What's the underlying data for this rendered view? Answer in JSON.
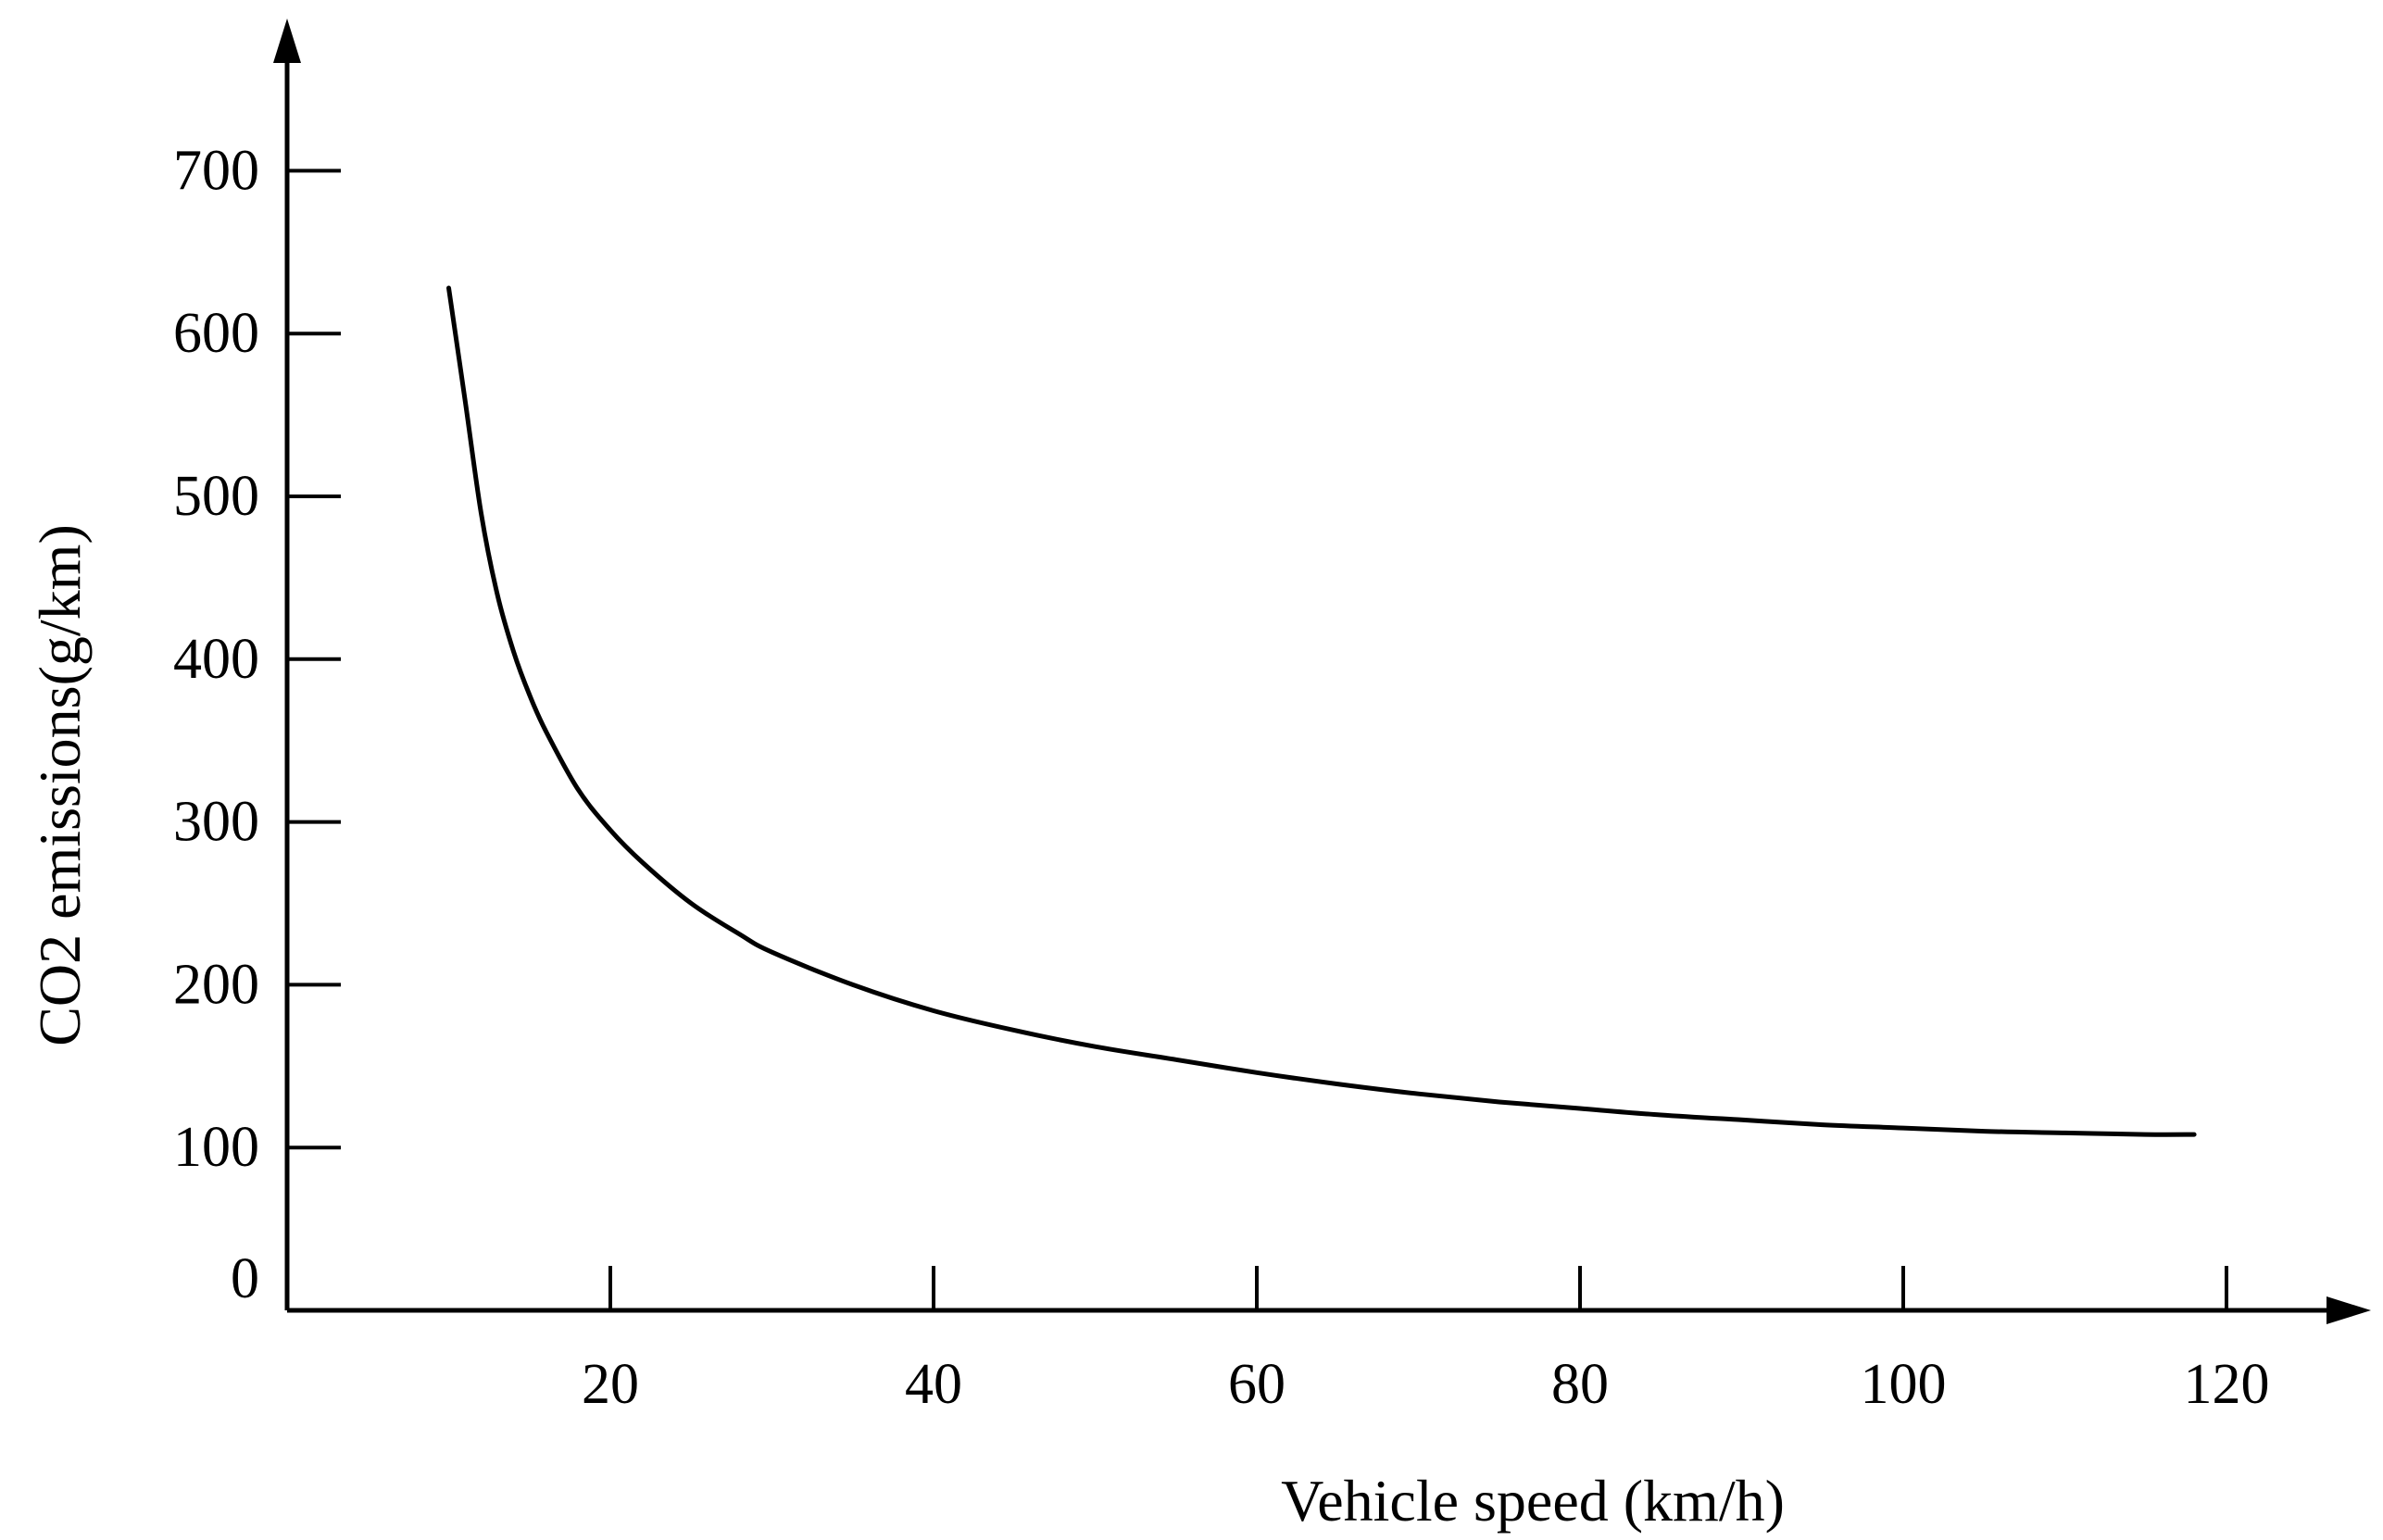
{
  "chart_data": {
    "type": "line",
    "title": "",
    "xlabel": "Vehicle speed (km/h)",
    "ylabel": "CO2 emissions(g/km)",
    "xlim": [
      0,
      130
    ],
    "ylim": [
      0,
      780
    ],
    "x_ticks": [
      20,
      40,
      60,
      80,
      100,
      120
    ],
    "x_tick_labels": [
      "20",
      "40",
      "60",
      "80",
      "100",
      "120"
    ],
    "y_ticks": [
      0,
      100,
      200,
      300,
      400,
      500,
      600,
      700
    ],
    "y_tick_labels": [
      "0",
      "100",
      "200",
      "300",
      "400",
      "500",
      "600",
      "700"
    ],
    "grid": false,
    "legend": "none",
    "line_color": "#000000",
    "series": [
      {
        "x": [
          10,
          11,
          12,
          13,
          14,
          15,
          16,
          18,
          20,
          22,
          25,
          28,
          30,
          35,
          40,
          45,
          50,
          55,
          60,
          65,
          70,
          75,
          80,
          85,
          90,
          95,
          100,
          105,
          110,
          115,
          118
        ],
        "values": [
          628,
          560,
          490,
          440,
          405,
          378,
          356,
          320,
          295,
          275,
          250,
          231,
          220,
          200,
          184,
          172,
          162,
          154,
          146,
          139,
          133,
          128,
          124,
          120,
          117,
          114,
          112,
          110,
          109,
          108,
          108
        ]
      }
    ]
  }
}
